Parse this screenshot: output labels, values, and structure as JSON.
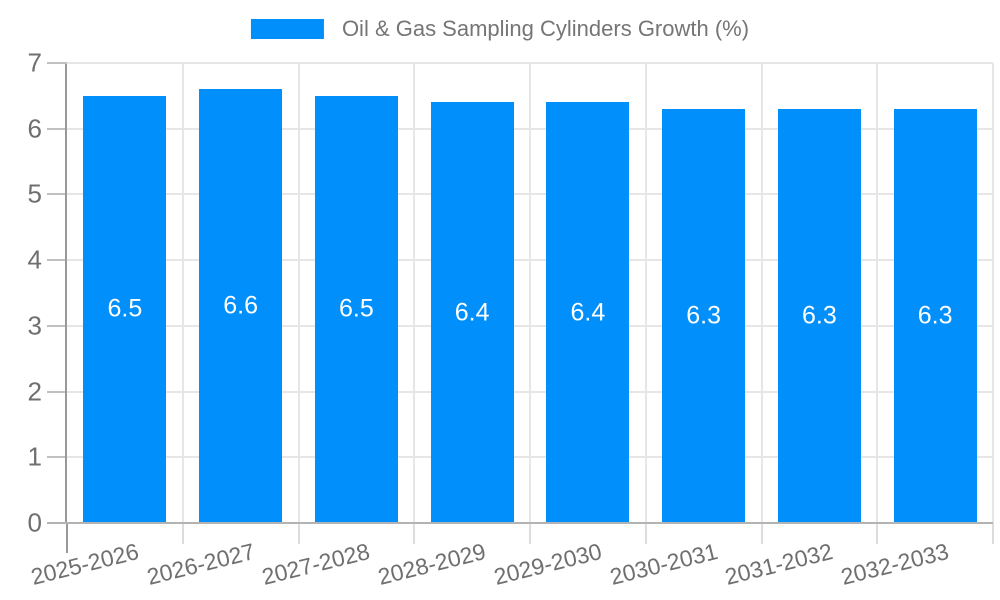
{
  "chart_data": {
    "type": "bar",
    "title": "Oil & Gas Sampling Cylinders Growth (%)",
    "categories": [
      "2025-2026",
      "2026-2027",
      "2027-2028",
      "2028-2029",
      "2029-2030",
      "2030-2031",
      "2031-2032",
      "2032-2033"
    ],
    "series": [
      {
        "name": "Oil & Gas Sampling Cylinders Growth (%)",
        "values": [
          6.5,
          6.6,
          6.5,
          6.4,
          6.4,
          6.3,
          6.3,
          6.3
        ]
      }
    ],
    "bar_value_labels": [
      "6.5",
      "6.6",
      "6.5",
      "6.4",
      "6.4",
      "6.3",
      "6.3",
      "6.3"
    ],
    "xlabel": "",
    "ylabel": "",
    "ylim": [
      0,
      7
    ],
    "ytick_step": 1,
    "ytick_labels": [
      "0",
      "1",
      "2",
      "3",
      "4",
      "5",
      "6",
      "7"
    ],
    "grid": true,
    "legend_position": "top-center",
    "colors": {
      "bar": "#008FFB",
      "value_label_text": "#ffffff",
      "axis_label_text": "#6f6f6f",
      "title_text": "#757575",
      "gridline": "#e6e6e6",
      "y_axis_line": "#999999",
      "x_axis_line": "#b3b3b3",
      "background": "#ffffff"
    }
  }
}
